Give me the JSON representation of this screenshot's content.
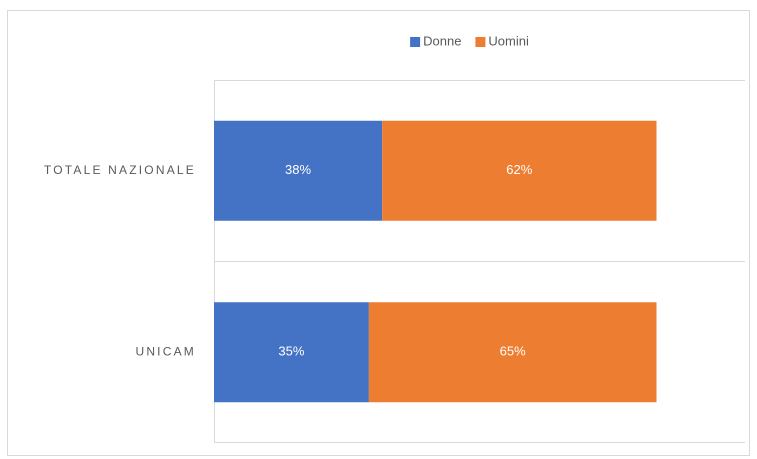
{
  "chart_data": {
    "type": "stacked-bar-horizontal",
    "categories": [
      "TOTALE NAZIONALE",
      "UNICAM"
    ],
    "series": [
      {
        "name": "Donne",
        "color": "#4472c4",
        "values": [
          38,
          35
        ],
        "value_labels": [
          "38%",
          "35%"
        ]
      },
      {
        "name": "Uomini",
        "color": "#ed7d31",
        "values": [
          62,
          65
        ],
        "value_labels": [
          "62%",
          "65%"
        ]
      }
    ],
    "xlim": [
      0,
      120
    ],
    "legend": "top"
  }
}
